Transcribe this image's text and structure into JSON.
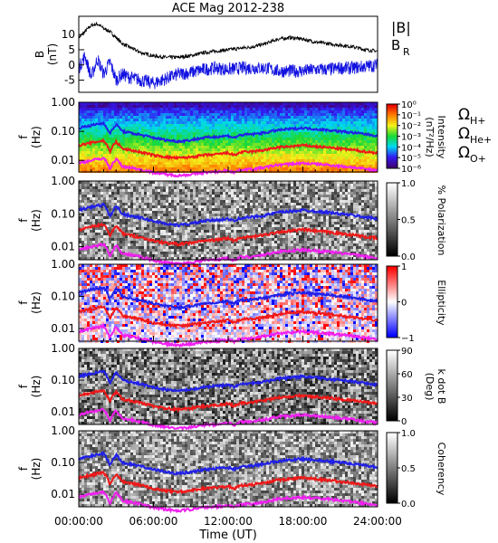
{
  "figure": {
    "title": "ACE Mag 2012-238",
    "time_axis": {
      "label": "Time (UT)",
      "ticks": [
        "00:00:00",
        "06:00:00",
        "12:00:00",
        "18:00:00",
        "24:00:00"
      ],
      "range_hours": [
        0,
        24
      ]
    }
  },
  "chart_data": [
    {
      "type": "line",
      "title": "ACE Mag 2012-238",
      "ylabel_line1": "B",
      "ylabel_line2": "(nT)",
      "ylim": [
        -9,
        16
      ],
      "yticks": [
        "10",
        "5",
        "0",
        "-5"
      ],
      "ytick_values": [
        10,
        5,
        0,
        -5
      ],
      "legend": [
        {
          "label": "|B|",
          "color": "#000000"
        },
        {
          "label": "B",
          "sub": "R",
          "color": "#1010e0"
        }
      ],
      "series": [
        {
          "name": "|B|",
          "color": "#000000",
          "x": [
            0,
            0.5,
            1,
            1.5,
            2,
            2.5,
            3,
            3.5,
            4,
            5,
            6,
            7,
            8,
            9,
            10,
            11,
            12,
            13,
            14,
            15,
            16,
            17,
            18,
            19,
            20,
            21,
            22,
            23,
            24
          ],
          "y": [
            9,
            11,
            13,
            13.5,
            12,
            11,
            9,
            7,
            6,
            4,
            3,
            2.5,
            2.5,
            3,
            4,
            4.5,
            5,
            5.5,
            6,
            7,
            8.5,
            9,
            8.5,
            7.5,
            7,
            6.5,
            6,
            5,
            4.5
          ]
        },
        {
          "name": "B",
          "color": "#1010e0",
          "x": [
            0,
            0.5,
            1,
            1.5,
            2,
            2.5,
            3,
            3.5,
            4,
            5,
            6,
            7,
            8,
            9,
            10,
            11,
            12,
            13,
            14,
            15,
            16,
            17,
            18,
            19,
            20,
            21,
            22,
            23,
            24
          ],
          "y": [
            -1,
            3,
            -4,
            2,
            -3,
            1,
            -5,
            -3,
            -4,
            -5,
            -6,
            -4.5,
            -3,
            -2.5,
            -1.5,
            -1,
            -1.5,
            -1,
            -1,
            -1,
            -2,
            -2,
            -2,
            -1.5,
            -1.5,
            -1,
            -1,
            -0.5,
            0
          ]
        }
      ]
    },
    {
      "type": "heatmap",
      "ylabel_line1": "f",
      "ylabel_line2": "(Hz)",
      "yscale": "log",
      "ylim": [
        0.004,
        1.0
      ],
      "yticks": [
        "1.00",
        "0.10",
        "0.01"
      ],
      "ytick_values": [
        1.0,
        0.1,
        0.01
      ],
      "colorbar": {
        "label_line1": "Intensity",
        "label_line2": "(nT²/Hz)",
        "ticks": [
          "10⁰",
          "10⁻¹",
          "10⁻²",
          "10⁻³",
          "10⁻⁴",
          "10⁻⁵",
          "10⁻⁶"
        ],
        "tick_values": [
          0,
          -1,
          -2,
          -3,
          -4,
          -5,
          -6
        ],
        "scheme": "rainbow"
      },
      "legend": [
        {
          "label": "Ω",
          "sub": "H+",
          "color": "#2020e8"
        },
        {
          "label": "Ω",
          "sub": "He+",
          "color": "#f01818"
        },
        {
          "label": "Ω",
          "sub": "O+",
          "color": "#f020f0"
        }
      ]
    },
    {
      "type": "heatmap",
      "ylabel_line1": "f",
      "ylabel_line2": "(Hz)",
      "yscale": "log",
      "ylim": [
        0.004,
        1.0
      ],
      "yticks": [
        "1.00",
        "0.10",
        "0.01"
      ],
      "ytick_values": [
        1.0,
        0.1,
        0.01
      ],
      "colorbar": {
        "label_line1": "% Polarization",
        "label_line2": "",
        "ticks": [
          "1.0",
          "0.5",
          "0.0"
        ],
        "tick_values": [
          1.0,
          0.5,
          0.0
        ],
        "scheme": "gray"
      }
    },
    {
      "type": "heatmap",
      "ylabel_line1": "f",
      "ylabel_line2": "(Hz)",
      "yscale": "log",
      "ylim": [
        0.004,
        1.0
      ],
      "yticks": [
        "1.00",
        "0.10",
        "0.01"
      ],
      "ytick_values": [
        1.0,
        0.1,
        0.01
      ],
      "colorbar": {
        "label_line1": "Ellipticity",
        "label_line2": "",
        "ticks": [
          "1",
          "0",
          "−1"
        ],
        "tick_values": [
          1,
          0,
          -1
        ],
        "scheme": "bwr"
      }
    },
    {
      "type": "heatmap",
      "ylabel_line1": "f",
      "ylabel_line2": "(Hz)",
      "yscale": "log",
      "ylim": [
        0.004,
        1.0
      ],
      "yticks": [
        "1.00",
        "0.10",
        "0.01"
      ],
      "ytick_values": [
        1.0,
        0.1,
        0.01
      ],
      "colorbar": {
        "label_line1": "k dot B",
        "label_line2": "(Deg)",
        "ticks": [
          "90",
          "60",
          "30",
          "0"
        ],
        "tick_values": [
          90,
          60,
          30,
          0
        ],
        "scheme": "gray"
      }
    },
    {
      "type": "heatmap",
      "ylabel_line1": "f",
      "ylabel_line2": "(Hz)",
      "yscale": "log",
      "ylim": [
        0.004,
        1.0
      ],
      "yticks": [
        "1.00",
        "0.10",
        "0.01"
      ],
      "ytick_values": [
        1.0,
        0.1,
        0.01
      ],
      "colorbar": {
        "label_line1": "Coherency",
        "label_line2": "",
        "ticks": [
          "1.0",
          "0.5",
          "0.0"
        ],
        "tick_values": [
          1.0,
          0.5,
          0.0
        ],
        "scheme": "gray"
      }
    }
  ],
  "gyrofrequency_lines": {
    "x": [
      0,
      1,
      2,
      2.5,
      3,
      3.5,
      4,
      5,
      6,
      7,
      8,
      9,
      10,
      11,
      12,
      12.5,
      13,
      14,
      15,
      16,
      17,
      18,
      19,
      20,
      21,
      22,
      23,
      24
    ],
    "H+": [
      0.13,
      0.16,
      0.19,
      0.08,
      0.17,
      0.1,
      0.09,
      0.075,
      0.06,
      0.05,
      0.045,
      0.05,
      0.06,
      0.065,
      0.07,
      0.06,
      0.075,
      0.08,
      0.09,
      0.11,
      0.12,
      0.13,
      0.12,
      0.11,
      0.1,
      0.09,
      0.08,
      0.07
    ],
    "He+": [
      0.033,
      0.04,
      0.048,
      0.02,
      0.043,
      0.025,
      0.023,
      0.019,
      0.015,
      0.013,
      0.012,
      0.013,
      0.015,
      0.016,
      0.018,
      0.015,
      0.019,
      0.02,
      0.023,
      0.028,
      0.03,
      0.033,
      0.03,
      0.028,
      0.025,
      0.023,
      0.02,
      0.018
    ],
    "O+": [
      0.008,
      0.01,
      0.012,
      0.005,
      0.011,
      0.006,
      0.0058,
      0.0048,
      0.0038,
      0.0033,
      0.003,
      0.0033,
      0.0038,
      0.004,
      0.0045,
      0.0038,
      0.0048,
      0.005,
      0.0058,
      0.007,
      0.0075,
      0.008,
      0.0075,
      0.007,
      0.0063,
      0.0058,
      0.005,
      0.0045
    ]
  }
}
